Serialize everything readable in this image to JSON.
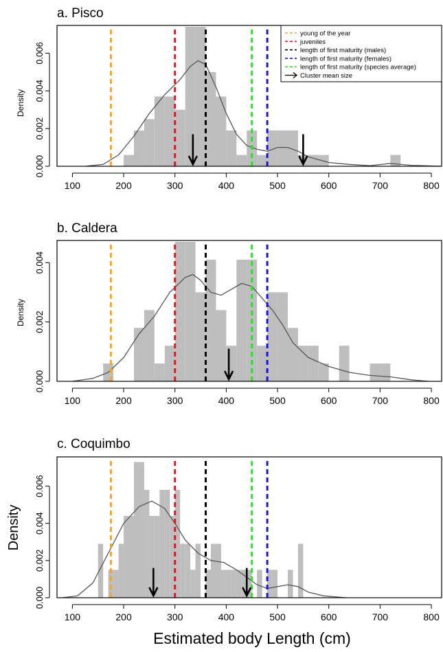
{
  "xlabel": "Estimated body Length (cm)",
  "colors": {
    "young": "#f5a623",
    "juveniles": "#e8141c",
    "males": "#000000",
    "females": "#1414e8",
    "average": "#1fe81f",
    "bars": "#bebebe",
    "density": "#555555"
  },
  "legend": {
    "items": [
      {
        "label": "young of the year",
        "color_key": "young",
        "kind": "dash"
      },
      {
        "label": "juveniles",
        "color_key": "juveniles",
        "kind": "dash"
      },
      {
        "label": "length of first maturity (males)",
        "color_key": "males",
        "kind": "dash"
      },
      {
        "label": "length of first maturity (females)",
        "color_key": "females",
        "kind": "dash"
      },
      {
        "label": "length of first maturity (species average)",
        "color_key": "average",
        "kind": "dash"
      },
      {
        "label": "Cluster mean size",
        "color_key": "males",
        "kind": "arrow"
      }
    ]
  },
  "chart_data": [
    {
      "type": "bar",
      "title": "a. Pisco",
      "ylabel": "Density",
      "xlim": [
        70,
        820
      ],
      "ylim": [
        0,
        0.0074
      ],
      "xticks": [
        100,
        200,
        300,
        400,
        500,
        600,
        700,
        800
      ],
      "yticks": [
        "0.000",
        "0.002",
        "0.004",
        "0.006"
      ],
      "ytick_values": [
        0,
        0.002,
        0.004,
        0.006
      ],
      "bin_width": 20,
      "bins": [
        {
          "x": 200,
          "d": 0.0006
        },
        {
          "x": 220,
          "d": 0.0019
        },
        {
          "x": 240,
          "d": 0.0025
        },
        {
          "x": 260,
          "d": 0.0037
        },
        {
          "x": 280,
          "d": 0.0037
        },
        {
          "x": 300,
          "d": 0.003
        },
        {
          "x": 320,
          "d": 0.0074
        },
        {
          "x": 340,
          "d": 0.0074
        },
        {
          "x": 360,
          "d": 0.005
        },
        {
          "x": 380,
          "d": 0.0037
        },
        {
          "x": 400,
          "d": 0.0019
        },
        {
          "x": 420,
          "d": 0.0006
        },
        {
          "x": 440,
          "d": 0.0019
        },
        {
          "x": 460,
          "d": 0.0006
        },
        {
          "x": 480,
          "d": 0.0019
        },
        {
          "x": 500,
          "d": 0.0019
        },
        {
          "x": 520,
          "d": 0.0019
        },
        {
          "x": 540,
          "d": 0.0006
        },
        {
          "x": 560,
          "d": 0.0006
        },
        {
          "x": 580,
          "d": 0.0006
        },
        {
          "x": 720,
          "d": 0.0006
        }
      ],
      "density": [
        [
          125,
          0
        ],
        [
          160,
          0.0001
        ],
        [
          190,
          0.0006
        ],
        [
          220,
          0.0016
        ],
        [
          250,
          0.0028
        ],
        [
          280,
          0.0038
        ],
        [
          310,
          0.0046
        ],
        [
          330,
          0.0053
        ],
        [
          345,
          0.0056
        ],
        [
          360,
          0.0054
        ],
        [
          380,
          0.0042
        ],
        [
          400,
          0.0028
        ],
        [
          420,
          0.0017
        ],
        [
          440,
          0.0011
        ],
        [
          460,
          0.0009
        ],
        [
          480,
          0.0008
        ],
        [
          500,
          0.001
        ],
        [
          520,
          0.001
        ],
        [
          540,
          0.0008
        ],
        [
          560,
          0.0005
        ],
        [
          600,
          0.0002
        ],
        [
          640,
          0.0001
        ],
        [
          680,
          3e-05
        ],
        [
          720,
          0.00015
        ],
        [
          760,
          5e-05
        ],
        [
          820,
          0
        ]
      ],
      "vlines": [
        {
          "x": 175,
          "color_key": "young"
        },
        {
          "x": 300,
          "color_key": "juveniles"
        },
        {
          "x": 360,
          "color_key": "males"
        },
        {
          "x": 480,
          "color_key": "females"
        },
        {
          "x": 450,
          "color_key": "average"
        }
      ],
      "arrows": [
        {
          "x": 335,
          "y_top": 0.0017,
          "y_bottom": 0.0
        },
        {
          "x": 550,
          "y_top": 0.0017,
          "y_bottom": 0.0
        }
      ]
    },
    {
      "type": "bar",
      "title": "b. Caldera",
      "ylabel": "Density",
      "xlim": [
        70,
        820
      ],
      "ylim": [
        0,
        0.0047
      ],
      "xticks": [
        100,
        200,
        300,
        400,
        500,
        600,
        700,
        800
      ],
      "yticks": [
        "0.000",
        "0.002",
        "0.004"
      ],
      "ytick_values": [
        0,
        0.002,
        0.004
      ],
      "bin_width": 20,
      "bins": [
        {
          "x": 160,
          "d": 0.0006
        },
        {
          "x": 220,
          "d": 0.0018
        },
        {
          "x": 240,
          "d": 0.0024
        },
        {
          "x": 260,
          "d": 0.0006
        },
        {
          "x": 280,
          "d": 0.0012
        },
        {
          "x": 300,
          "d": 0.0047
        },
        {
          "x": 320,
          "d": 0.0047
        },
        {
          "x": 340,
          "d": 0.003
        },
        {
          "x": 360,
          "d": 0.0041
        },
        {
          "x": 380,
          "d": 0.0024
        },
        {
          "x": 400,
          "d": 0.0012
        },
        {
          "x": 420,
          "d": 0.0041
        },
        {
          "x": 440,
          "d": 0.0041
        },
        {
          "x": 460,
          "d": 0.0012
        },
        {
          "x": 480,
          "d": 0.003
        },
        {
          "x": 500,
          "d": 0.003
        },
        {
          "x": 520,
          "d": 0.0018
        },
        {
          "x": 540,
          "d": 0.0012
        },
        {
          "x": 560,
          "d": 0.0012
        },
        {
          "x": 580,
          "d": 0.0006
        },
        {
          "x": 620,
          "d": 0.0012
        },
        {
          "x": 680,
          "d": 0.0006
        },
        {
          "x": 700,
          "d": 0.0006
        }
      ],
      "density": [
        [
          100,
          0
        ],
        [
          140,
          0.0001
        ],
        [
          170,
          0.0003
        ],
        [
          200,
          0.0008
        ],
        [
          230,
          0.0016
        ],
        [
          260,
          0.0022
        ],
        [
          290,
          0.003
        ],
        [
          320,
          0.0035
        ],
        [
          335,
          0.0036
        ],
        [
          350,
          0.0034
        ],
        [
          370,
          0.003
        ],
        [
          390,
          0.0029
        ],
        [
          410,
          0.0031
        ],
        [
          430,
          0.0033
        ],
        [
          450,
          0.0032
        ],
        [
          470,
          0.0028
        ],
        [
          490,
          0.0024
        ],
        [
          510,
          0.0019
        ],
        [
          530,
          0.0013
        ],
        [
          560,
          0.0008
        ],
        [
          600,
          0.0005
        ],
        [
          640,
          0.0003
        ],
        [
          680,
          0.0002
        ],
        [
          720,
          0.00015
        ],
        [
          760,
          5e-05
        ],
        [
          795,
          0
        ]
      ],
      "vlines": [
        {
          "x": 175,
          "color_key": "young"
        },
        {
          "x": 300,
          "color_key": "juveniles"
        },
        {
          "x": 360,
          "color_key": "males"
        },
        {
          "x": 480,
          "color_key": "females"
        },
        {
          "x": 450,
          "color_key": "average"
        }
      ],
      "arrows": [
        {
          "x": 405,
          "y_top": 0.0011,
          "y_bottom": 0.0
        }
      ]
    },
    {
      "type": "bar",
      "title": "c. Coquimbo",
      "ylabel": "Density",
      "xlim": [
        70,
        820
      ],
      "ylim": [
        0,
        0.0075
      ],
      "xticks": [
        100,
        200,
        300,
        400,
        500,
        600,
        700,
        800
      ],
      "yticks": [
        "0.000",
        "0.002",
        "0.004",
        "0.006"
      ],
      "ytick_values": [
        0,
        0.002,
        0.004,
        0.006
      ],
      "bin_width": 10,
      "bins": [
        {
          "x": 150,
          "d": 0.0029
        },
        {
          "x": 170,
          "d": 0.0015
        },
        {
          "x": 180,
          "d": 0.0015
        },
        {
          "x": 190,
          "d": 0.0029
        },
        {
          "x": 200,
          "d": 0.0044
        },
        {
          "x": 210,
          "d": 0.0044
        },
        {
          "x": 220,
          "d": 0.0073
        },
        {
          "x": 230,
          "d": 0.0073
        },
        {
          "x": 240,
          "d": 0.0058
        },
        {
          "x": 250,
          "d": 0.0044
        },
        {
          "x": 260,
          "d": 0.0044
        },
        {
          "x": 270,
          "d": 0.0058
        },
        {
          "x": 280,
          "d": 0.0058
        },
        {
          "x": 290,
          "d": 0.0044
        },
        {
          "x": 300,
          "d": 0.0058
        },
        {
          "x": 310,
          "d": 0.0029
        },
        {
          "x": 320,
          "d": 0.0029
        },
        {
          "x": 330,
          "d": 0.0015
        },
        {
          "x": 340,
          "d": 0.0029
        },
        {
          "x": 360,
          "d": 0.0015
        },
        {
          "x": 370,
          "d": 0.0029
        },
        {
          "x": 380,
          "d": 0.0029
        },
        {
          "x": 390,
          "d": 0.0015
        },
        {
          "x": 400,
          "d": 0.0015
        },
        {
          "x": 410,
          "d": 0.0015
        },
        {
          "x": 420,
          "d": 0.0015
        },
        {
          "x": 430,
          "d": 0.0015
        },
        {
          "x": 440,
          "d": 0.0015
        },
        {
          "x": 460,
          "d": 0.0015
        },
        {
          "x": 480,
          "d": 0.0015
        },
        {
          "x": 490,
          "d": 0.0015
        },
        {
          "x": 520,
          "d": 0.0015
        },
        {
          "x": 540,
          "d": 0.0029
        }
      ],
      "density": [
        [
          80,
          0
        ],
        [
          110,
          0.0001
        ],
        [
          140,
          0.0008
        ],
        [
          170,
          0.0024
        ],
        [
          200,
          0.004
        ],
        [
          230,
          0.0049
        ],
        [
          255,
          0.0052
        ],
        [
          280,
          0.0048
        ],
        [
          300,
          0.004
        ],
        [
          320,
          0.0031
        ],
        [
          345,
          0.0024
        ],
        [
          370,
          0.002
        ],
        [
          395,
          0.0019
        ],
        [
          420,
          0.0015
        ],
        [
          440,
          0.0011
        ],
        [
          460,
          0.0007
        ],
        [
          480,
          0.0005
        ],
        [
          500,
          0.0006
        ],
        [
          520,
          0.0007
        ],
        [
          540,
          0.0006
        ],
        [
          560,
          0.0003
        ],
        [
          590,
          0.0001
        ],
        [
          633,
          0
        ]
      ],
      "vlines": [
        {
          "x": 175,
          "color_key": "young"
        },
        {
          "x": 300,
          "color_key": "juveniles"
        },
        {
          "x": 360,
          "color_key": "males"
        },
        {
          "x": 480,
          "color_key": "females"
        },
        {
          "x": 450,
          "color_key": "average"
        }
      ],
      "arrows": [
        {
          "x": 258,
          "y_top": 0.0016,
          "y_bottom": 0.0
        },
        {
          "x": 440,
          "y_top": 0.0016,
          "y_bottom": 0.0
        }
      ]
    }
  ]
}
